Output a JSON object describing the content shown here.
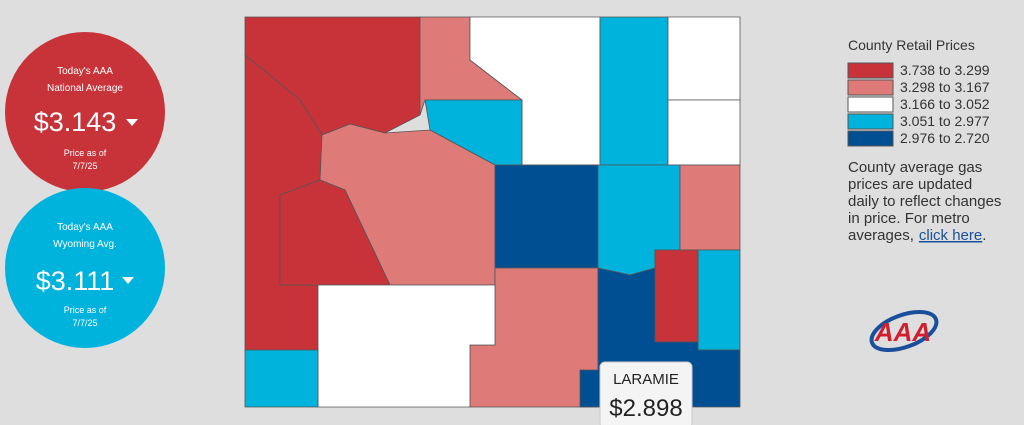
{
  "national": {
    "heading": [
      "Today's AAA",
      "National Average"
    ],
    "price": "$3.143",
    "as_of_label": "Price as of",
    "as_of_date": "7/7/25"
  },
  "state": {
    "heading": [
      "Today's AAA",
      "Wyoming Avg."
    ],
    "price": "$3.111",
    "as_of_label": "Price as of",
    "as_of_date": "7/7/25"
  },
  "legend": {
    "title": "County Retail Prices",
    "items": [
      {
        "label": "3.738 to 3.299",
        "color": "#c8333a"
      },
      {
        "label": "3.298 to 3.167",
        "color": "#de7a78"
      },
      {
        "label": "3.166 to 3.052",
        "color": "#ffffff"
      },
      {
        "label": "3.051 to 2.977",
        "color": "#00b3dc"
      },
      {
        "label": "2.976 to 2.720",
        "color": "#004f93"
      }
    ]
  },
  "note": {
    "lines": [
      "County average gas",
      "prices are updated",
      "daily to reflect changes",
      "in price. For metro",
      "averages,"
    ],
    "link": "click here",
    "end": "."
  },
  "tooltip": {
    "county": "LARAMIE",
    "price": "$2.898"
  },
  "logo": "AAA"
}
